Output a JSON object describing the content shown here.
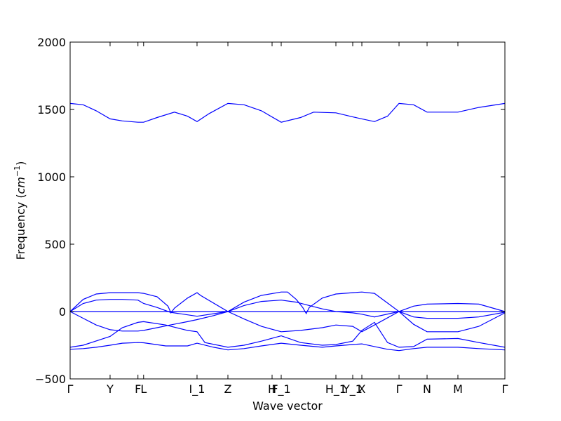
{
  "chart_data": {
    "type": "line",
    "title": "",
    "xlabel": "Wave vector",
    "ylabel": {
      "prefix": "Frequency (",
      "unit_base": "cm",
      "unit_exp": "−1",
      "suffix": ")"
    },
    "xlim": [
      0,
      1
    ],
    "ylim": [
      -500,
      2000
    ],
    "yticks": [
      {
        "value": -500,
        "label": "−500"
      },
      {
        "value": 0,
        "label": "0"
      },
      {
        "value": 500,
        "label": "500"
      },
      {
        "value": 1000,
        "label": "1000"
      },
      {
        "value": 1500,
        "label": "1500"
      },
      {
        "value": 2000,
        "label": "2000"
      }
    ],
    "xticks": [
      {
        "value": 0.0,
        "label": "Γ"
      },
      {
        "value": 0.0919,
        "label": "Y"
      },
      {
        "value": 0.156,
        "label": "F"
      },
      {
        "value": 0.169,
        "label": "L"
      },
      {
        "value": 0.2919,
        "label": "I_1"
      },
      {
        "value": 0.3629,
        "label": "Z"
      },
      {
        "value": 0.4645,
        "label": "H"
      },
      {
        "value": 0.4855,
        "label": "F_1"
      },
      {
        "value": 0.6113,
        "label": "H_1"
      },
      {
        "value": 0.65,
        "label": "Y_1"
      },
      {
        "value": 0.671,
        "label": "X"
      },
      {
        "value": 0.7565,
        "label": "Γ"
      },
      {
        "value": 0.821,
        "label": "N"
      },
      {
        "value": 0.8919,
        "label": "M"
      },
      {
        "value": 1.0,
        "label": "Γ"
      }
    ],
    "zero_line": true,
    "line_color": "#0000ff",
    "series": [
      {
        "x": [
          0,
          0.03,
          0.06,
          0.0919,
          0.12,
          0.156,
          0.169,
          0.22,
          0.27,
          0.2919,
          0.33,
          0.3629,
          0.4,
          0.44,
          0.4855,
          0.53,
          0.58,
          0.6113,
          0.65,
          0.671,
          0.7,
          0.73,
          0.7565,
          0.79,
          0.821,
          0.8919,
          0.94,
          1.0
        ],
        "y": [
          -280,
          -275,
          -265,
          -250,
          -235,
          -230,
          -232,
          -255,
          -255,
          -235,
          -265,
          -285,
          -275,
          -255,
          -235,
          -250,
          -265,
          -255,
          -245,
          -240,
          -260,
          -280,
          -290,
          -275,
          -265,
          -265,
          -275,
          -285
        ]
      },
      {
        "x": [
          0,
          0.03,
          0.0919,
          0.12,
          0.156,
          0.169,
          0.22,
          0.27,
          0.2919,
          0.31,
          0.3629,
          0.4,
          0.44,
          0.4855,
          0.53,
          0.58,
          0.6113,
          0.65,
          0.671,
          0.7,
          0.73,
          0.7565,
          0.79,
          0.821,
          0.8919,
          0.94,
          1.0
        ],
        "y": [
          -265,
          -250,
          -185,
          -120,
          -80,
          -75,
          -100,
          -140,
          -150,
          -230,
          -265,
          -250,
          -220,
          -180,
          -230,
          -250,
          -245,
          -220,
          -140,
          -80,
          -230,
          -265,
          -260,
          -205,
          -200,
          -230,
          -265
        ]
      },
      {
        "x": [
          0,
          0.03,
          0.06,
          0.0919,
          0.12,
          0.156,
          0.169,
          0.2,
          0.23,
          0.27,
          0.2919,
          0.33,
          0.3629,
          0.4,
          0.44,
          0.4855,
          0.53,
          0.58,
          0.6113,
          0.65,
          0.671,
          0.7,
          0.7565,
          0.79,
          0.821,
          0.8919,
          0.94,
          1.0
        ],
        "y": [
          0,
          -50,
          -100,
          -135,
          -145,
          -145,
          -140,
          -120,
          -100,
          -75,
          -60,
          -30,
          0,
          -55,
          -110,
          -150,
          -140,
          -120,
          -100,
          -110,
          -150,
          -100,
          0,
          -95,
          -150,
          -150,
          -110,
          -10
        ]
      },
      {
        "x": [
          0,
          0.03,
          0.06,
          0.0919,
          0.12,
          0.156,
          0.169,
          0.2,
          0.23,
          0.2919,
          0.3629,
          0.4,
          0.44,
          0.4855,
          0.52,
          0.55,
          0.58,
          0.6113,
          0.65,
          0.671,
          0.7,
          0.7565,
          0.79,
          0.821,
          0.8919,
          0.94,
          1.0
        ],
        "y": [
          0,
          60,
          85,
          90,
          90,
          85,
          60,
          30,
          -5,
          -35,
          0,
          45,
          75,
          85,
          70,
          45,
          20,
          0,
          -10,
          -20,
          -40,
          0,
          -40,
          -50,
          -50,
          -40,
          -5
        ]
      },
      {
        "x": [
          0,
          0.03,
          0.06,
          0.0919,
          0.12,
          0.156,
          0.169,
          0.2,
          0.225,
          0.232,
          0.24,
          0.27,
          0.2919,
          0.3,
          0.3629,
          0.4,
          0.44,
          0.4855,
          0.5,
          0.52,
          0.535,
          0.543,
          0.55,
          0.58,
          0.6113,
          0.65,
          0.671,
          0.7,
          0.7565,
          0.79,
          0.821,
          0.8919,
          0.94,
          1.0
        ],
        "y": [
          0,
          90,
          130,
          140,
          140,
          140,
          135,
          110,
          40,
          -10,
          25,
          100,
          140,
          120,
          0,
          70,
          120,
          145,
          145,
          90,
          30,
          -15,
          30,
          100,
          130,
          140,
          145,
          135,
          0,
          40,
          55,
          60,
          55,
          0
        ]
      },
      {
        "x": [
          0,
          0.0919,
          0.156,
          0.169,
          0.2,
          0.2919,
          0.3,
          0.3629,
          0.4855,
          0.671,
          0.7,
          0.7565,
          0.821,
          0.8919,
          1.0
        ],
        "y": [
          0,
          0,
          0,
          0,
          0,
          0,
          0,
          0,
          0,
          0,
          0,
          0,
          0,
          0,
          0
        ]
      },
      {
        "x": [
          0,
          0.03,
          0.06,
          0.0919,
          0.12,
          0.156,
          0.169,
          0.2,
          0.24,
          0.27,
          0.2919,
          0.32,
          0.3629,
          0.4,
          0.44,
          0.4855,
          0.53,
          0.56,
          0.6113,
          0.65,
          0.671,
          0.7,
          0.73,
          0.7565,
          0.79,
          0.821,
          0.8919,
          0.94,
          1.0
        ],
        "y": [
          1545,
          1535,
          1490,
          1430,
          1415,
          1405,
          1405,
          1440,
          1480,
          1450,
          1410,
          1470,
          1545,
          1535,
          1490,
          1405,
          1440,
          1480,
          1475,
          1445,
          1430,
          1410,
          1450,
          1545,
          1535,
          1480,
          1480,
          1515,
          1545
        ]
      }
    ]
  }
}
